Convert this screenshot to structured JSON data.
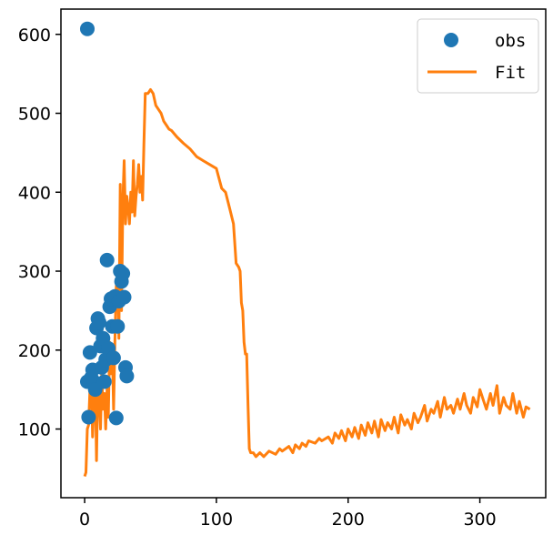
{
  "chart_data": {
    "type": "scatter",
    "title": "",
    "xlabel": "",
    "ylabel": "",
    "xlim": [
      -18,
      350
    ],
    "ylim": [
      13,
      632
    ],
    "xticks": [
      0,
      100,
      200,
      300
    ],
    "yticks": [
      100,
      200,
      300,
      400,
      500,
      600
    ],
    "grid": false,
    "legend": {
      "position": "top-right",
      "entries": [
        "obs",
        "Fit"
      ]
    },
    "colors": {
      "obs": "#1f77b4",
      "Fit": "#ff7f0e",
      "axes": "#000000",
      "background": "#ffffff"
    },
    "series": [
      {
        "name": "obs",
        "kind": "scatter",
        "x": [
          2,
          2,
          3,
          4,
          5,
          6,
          7,
          8,
          9,
          10,
          11,
          12,
          13,
          14,
          15,
          16,
          17,
          18,
          19,
          20,
          21,
          22,
          23,
          24,
          25,
          26,
          27,
          28,
          29,
          30,
          31,
          32
        ],
        "y": [
          607,
          160,
          115,
          197,
          165,
          175,
          160,
          150,
          228,
          240,
          235,
          205,
          178,
          215,
          160,
          188,
          314,
          202,
          255,
          265,
          230,
          190,
          268,
          114,
          230,
          262,
          300,
          287,
          297,
          267,
          178,
          167
        ]
      },
      {
        "name": "Fit",
        "kind": "line",
        "x": [
          0,
          1,
          2,
          3,
          4,
          5,
          6,
          7,
          8,
          9,
          10,
          11,
          12,
          13,
          14,
          15,
          16,
          17,
          18,
          19,
          20,
          21,
          22,
          23,
          24,
          25,
          26,
          27,
          28,
          29,
          30,
          31,
          32,
          33,
          34,
          35,
          36,
          37,
          38,
          39,
          40,
          41,
          42,
          43,
          44,
          45,
          46,
          47,
          48,
          50,
          52,
          54,
          56,
          58,
          60,
          62,
          64,
          66,
          70,
          75,
          80,
          85,
          90,
          95,
          100,
          104,
          107,
          110,
          113,
          115,
          117,
          118,
          119,
          120,
          121,
          122,
          123,
          124,
          125,
          126,
          128,
          130,
          133,
          136,
          140,
          145,
          148,
          150,
          155,
          158,
          160,
          163,
          165,
          168,
          170,
          175,
          178,
          180,
          185,
          188,
          190,
          193,
          195,
          198,
          200,
          203,
          205,
          208,
          210,
          213,
          215,
          218,
          220,
          223,
          225,
          228,
          230,
          233,
          235,
          238,
          240,
          243,
          245,
          248,
          250,
          253,
          255,
          258,
          260,
          263,
          265,
          268,
          270,
          273,
          275,
          278,
          280,
          283,
          285,
          288,
          290,
          293,
          295,
          298,
          300,
          303,
          305,
          308,
          310,
          313,
          315,
          318,
          320,
          323,
          325,
          328,
          330,
          333,
          335,
          338
        ],
        "y": [
          40,
          45,
          100,
          105,
          150,
          170,
          90,
          130,
          170,
          60,
          165,
          140,
          100,
          170,
          125,
          145,
          100,
          150,
          115,
          210,
          170,
          200,
          125,
          215,
          280,
          300,
          215,
          410,
          250,
          390,
          440,
          360,
          395,
          380,
          360,
          400,
          375,
          440,
          370,
          395,
          410,
          435,
          400,
          420,
          390,
          460,
          525,
          525,
          525,
          530,
          525,
          510,
          505,
          500,
          490,
          485,
          480,
          478,
          470,
          462,
          455,
          445,
          440,
          435,
          430,
          405,
          400,
          380,
          360,
          310,
          305,
          300,
          260,
          250,
          210,
          195,
          195,
          130,
          75,
          70,
          70,
          65,
          70,
          65,
          72,
          68,
          75,
          72,
          78,
          70,
          80,
          75,
          82,
          78,
          85,
          82,
          88,
          85,
          90,
          82,
          95,
          88,
          98,
          85,
          100,
          90,
          102,
          88,
          105,
          92,
          108,
          95,
          110,
          90,
          112,
          98,
          108,
          100,
          115,
          95,
          118,
          105,
          112,
          100,
          120,
          108,
          115,
          130,
          110,
          125,
          120,
          135,
          115,
          140,
          125,
          130,
          120,
          138,
          125,
          145,
          130,
          120,
          140,
          128,
          150,
          135,
          125,
          145,
          130,
          155,
          120,
          140,
          130,
          125,
          145,
          120,
          135,
          115,
          128,
          125
        ]
      }
    ]
  }
}
